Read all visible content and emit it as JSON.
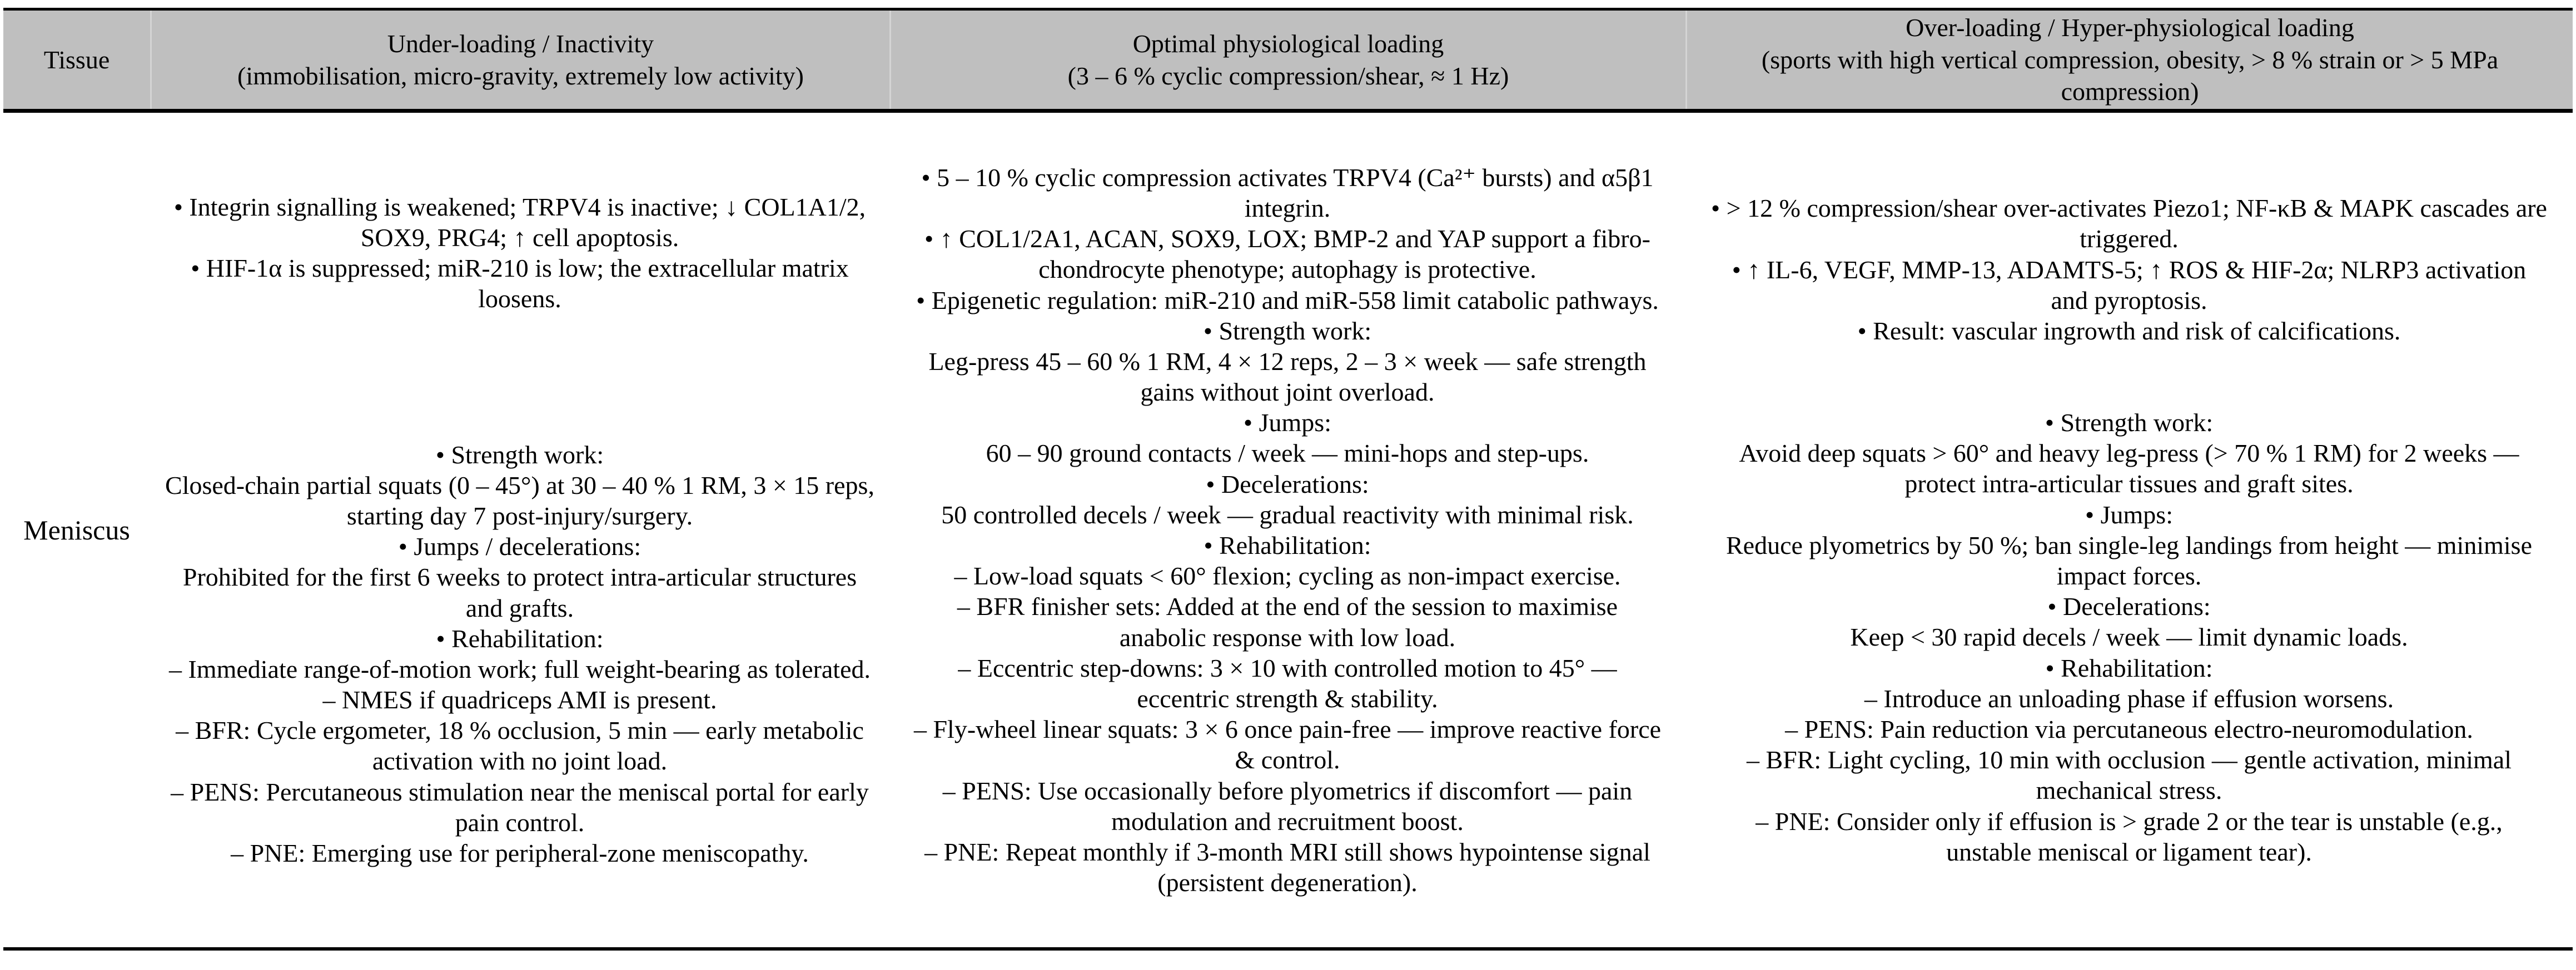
{
  "colors": {
    "header_background": "#bfbfbf",
    "body_background": "#ffffff",
    "text": "#000000",
    "rule": "#000000"
  },
  "header": {
    "tissue_label": "Tissue",
    "underloading": {
      "title": "Under-loading / Inactivity",
      "subtitle": "(immobilisation, micro-gravity, extremely low activity)"
    },
    "optimal": {
      "title": "Optimal physiological loading",
      "subtitle": "(3 – 6 % cyclic compression/shear, ≈ 1 Hz)"
    },
    "overloading": {
      "title": "Over-loading / Hyper-physiological loading",
      "subtitle": "(sports with high vertical compression, obesity, > 8 % strain or > 5 MPa compression)"
    }
  },
  "row": {
    "tissue": "Meniscus",
    "underloading": {
      "mechanisms": [
        "• Integrin signalling is weakened; TRPV4 is inactive; ↓ COL1A1/2, SOX9, PRG4; ↑ cell apoptosis.",
        "• HIF-1α is suppressed; miR-210 is low; the extracellular matrix loosens."
      ],
      "program": [
        "• Strength work:",
        "Closed-chain partial squats (0 – 45°) at 30 – 40 % 1 RM, 3 × 15 reps, starting day 7 post-injury/surgery.",
        "• Jumps / decelerations:",
        "Prohibited for the first 6 weeks to protect intra-articular structures and grafts.",
        "• Rehabilitation:",
        "– Immediate range-of-motion work; full weight-bearing as tolerated.",
        "– NMES if quadriceps AMI is present.",
        "– BFR: Cycle ergometer, 18 % occlusion, 5 min — early metabolic activation with no joint load.",
        "– PENS: Percutaneous stimulation near the meniscal portal for early pain control.",
        "– PNE: Emerging use for peripheral-zone meniscopathy."
      ]
    },
    "optimal": {
      "paragraphs": [
        "• 5 – 10 % cyclic compression activates TRPV4 (Ca²⁺ bursts) and α5β1 integrin.",
        "• ↑ COL1/2A1, ACAN, SOX9, LOX; BMP-2 and YAP support a fibro-chondrocyte phenotype; autophagy is protective.",
        "• Epigenetic regulation: miR-210 and miR-558 limit catabolic pathways.",
        "• Strength work:",
        "Leg-press 45 – 60 % 1 RM, 4 × 12 reps, 2 – 3 × week — safe strength gains without joint overload.",
        "• Jumps:",
        "60 – 90 ground contacts / week — mini-hops and step-ups.",
        "• Decelerations:",
        "50 controlled decels / week — gradual reactivity with minimal risk.",
        "• Rehabilitation:",
        "– Low-load squats < 60° flexion; cycling as non-impact exercise.",
        "– BFR finisher sets: Added at the end of the session to maximise anabolic response with low load.",
        "– Eccentric step-downs: 3 × 10 with controlled motion to 45° — eccentric strength & stability.",
        "– Fly-wheel linear squats: 3 × 6 once pain-free — improve reactive force & control.",
        "– PENS: Use occasionally before plyometrics if discomfort — pain modulation and recruitment boost.",
        "– PNE: Repeat monthly if 3-month MRI still shows hypointense signal (persistent degeneration)."
      ]
    },
    "overloading": {
      "mechanisms": [
        "• > 12 % compression/shear over-activates Piezo1; NF-κB & MAPK cascades are triggered.",
        "• ↑ IL-6, VEGF, MMP-13, ADAMTS-5; ↑ ROS & HIF-2α; NLRP3 activation and pyroptosis.",
        "• Result: vascular ingrowth and risk of calcifications."
      ],
      "program": [
        "• Strength work:",
        "Avoid deep squats > 60° and heavy leg-press (> 70 % 1 RM) for 2 weeks — protect intra-articular tissues and graft sites.",
        "• Jumps:",
        "Reduce plyometrics by 50 %; ban single-leg landings from height — minimise impact forces.",
        "• Decelerations:",
        "Keep < 30 rapid decels / week — limit dynamic loads.",
        "• Rehabilitation:",
        "– Introduce an unloading phase if effusion worsens.",
        "– PENS: Pain reduction via percutaneous electro-neuromodulation.",
        "– BFR: Light cycling, 10 min with occlusion — gentle activation, minimal mechanical stress.",
        "– PNE: Consider only if effusion is > grade 2 or the tear is unstable (e.g., unstable meniscal or ligament tear)."
      ]
    }
  }
}
